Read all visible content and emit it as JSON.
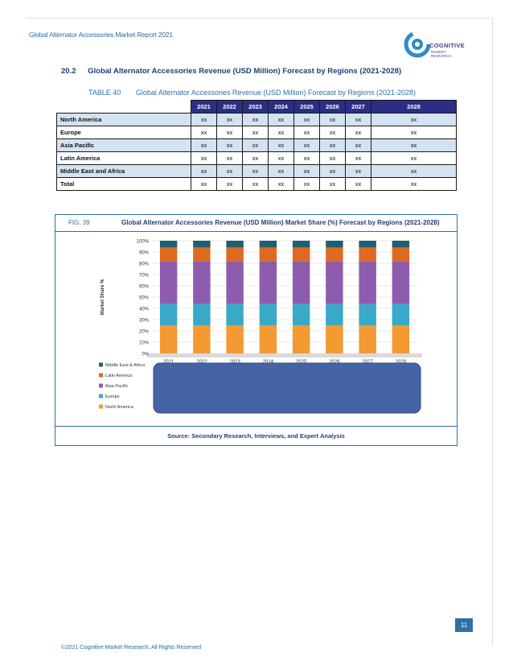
{
  "header": {
    "report_title": "Global Alternator Accessories Market Report 2021",
    "logo_name": "COGNITIVE",
    "logo_sub_1": "MARKET",
    "logo_sub_2": "RESEARCH"
  },
  "section": {
    "number": "20.2",
    "title": "Global Alternator Accessories Revenue (USD Million) Forecast by Regions (2021-2028)"
  },
  "table": {
    "label": "TABLE 40",
    "caption": "Global Alternator Accessories Revenue (USD Million) Forecast by Regions (2021-2028)",
    "columns": [
      "2021",
      "2022",
      "2023",
      "2024",
      "2025",
      "2026",
      "2027",
      "2028"
    ],
    "rows": [
      {
        "region": "North America",
        "values": [
          "xx",
          "xx",
          "xx",
          "xx",
          "xx",
          "xx",
          "xx",
          "xx"
        ]
      },
      {
        "region": "Europe",
        "values": [
          "xx",
          "xx",
          "xx",
          "xx",
          "xx",
          "xx",
          "xx",
          "xx"
        ]
      },
      {
        "region": "Asia Pacific",
        "values": [
          "xx",
          "xx",
          "xx",
          "xx",
          "xx",
          "xx",
          "xx",
          "xx"
        ]
      },
      {
        "region": "Latin America",
        "values": [
          "xx",
          "xx",
          "xx",
          "xx",
          "xx",
          "xx",
          "xx",
          "xx"
        ]
      },
      {
        "region": "Middle East and Africa",
        "values": [
          "xx",
          "xx",
          "xx",
          "xx",
          "xx",
          "xx",
          "xx",
          "xx"
        ]
      },
      {
        "region": "Total",
        "values": [
          "xx",
          "xx",
          "xx",
          "xx",
          "xx",
          "xx",
          "xx",
          "xx"
        ]
      }
    ]
  },
  "figure": {
    "label": "FIG. 39",
    "title": "Global Alternator Accessories Revenue (USD Million) Market Share (%) Forecast by Regions (2021-2028)",
    "source": "Source: Secondary Research, Interviews, and Expert Analysis"
  },
  "chart_data": {
    "type": "bar",
    "stacked": true,
    "categories": [
      "2021",
      "2022",
      "2023",
      "2024",
      "2025",
      "2026",
      "2027",
      "2028"
    ],
    "ylabel": "Market Share %",
    "ylim": [
      0,
      100
    ],
    "yticks": [
      "0%",
      "10%",
      "20%",
      "30%",
      "40%",
      "50%",
      "60%",
      "70%",
      "80%",
      "90%",
      "100%"
    ],
    "grid": true,
    "legend_placement": "bottom-left",
    "series": [
      {
        "name": "North America",
        "color": "#f39a33",
        "values": [
          25,
          25,
          25,
          25,
          25,
          25,
          25,
          25
        ]
      },
      {
        "name": "Europe",
        "color": "#3aa9c9",
        "values": [
          19,
          19,
          19,
          19,
          19,
          19,
          19,
          19
        ]
      },
      {
        "name": "Asia Pacific",
        "color": "#8e5cae",
        "values": [
          38,
          38,
          38,
          38,
          38,
          38,
          38,
          38
        ]
      },
      {
        "name": "Latin America",
        "color": "#de6a1f",
        "values": [
          12,
          12,
          12,
          12,
          12,
          12,
          12,
          12
        ]
      },
      {
        "name": "Middle East & Africa",
        "color": "#1f5f73",
        "values": [
          6,
          6,
          6,
          6,
          6,
          6,
          6,
          6
        ]
      }
    ]
  },
  "page": {
    "number": "11",
    "footer": "©2021 Cognitive Market Research, All Rights Reserved"
  },
  "colors": {
    "accent": "#2f6fa8",
    "table_header": "#2d2d86",
    "row_shade": "#d4e3f2",
    "overlay_box": "#4564a6"
  }
}
